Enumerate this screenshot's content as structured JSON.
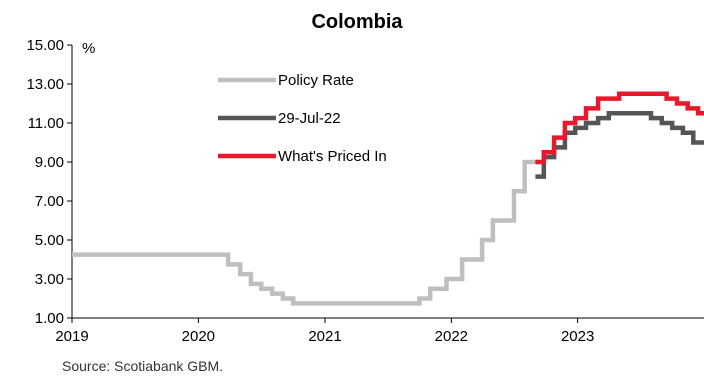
{
  "chart_data": {
    "type": "line",
    "title": "Colombia",
    "ylabel": "%",
    "ylim": [
      1.0,
      15.0
    ],
    "xlim": [
      "2019-01-01",
      "2024-01-01"
    ],
    "y_ticks": [
      "1.00",
      "3.00",
      "5.00",
      "7.00",
      "9.00",
      "11.00",
      "13.00",
      "15.00"
    ],
    "x_ticks": [
      "2019",
      "2020",
      "2021",
      "2022",
      "2023"
    ],
    "legend_placement": "upper-left inside plot",
    "grid": false,
    "series": [
      {
        "name": "Policy Rate",
        "color": "#bfbfbf",
        "step": true,
        "points": [
          [
            "2019-01-01",
            4.25
          ],
          [
            "2020-03-27",
            3.75
          ],
          [
            "2020-05-01",
            3.25
          ],
          [
            "2020-06-01",
            2.75
          ],
          [
            "2020-07-01",
            2.5
          ],
          [
            "2020-08-01",
            2.25
          ],
          [
            "2020-09-01",
            2.0
          ],
          [
            "2020-10-01",
            1.75
          ],
          [
            "2021-10-01",
            2.0
          ],
          [
            "2021-11-01",
            2.5
          ],
          [
            "2021-12-18",
            3.0
          ],
          [
            "2022-02-01",
            4.0
          ],
          [
            "2022-03-31",
            5.0
          ],
          [
            "2022-05-01",
            6.0
          ],
          [
            "2022-07-01",
            7.5
          ],
          [
            "2022-08-01",
            9.0
          ],
          [
            "2022-09-10",
            9.0
          ]
        ]
      },
      {
        "name": "29-Jul-22",
        "color": "#555555",
        "step": true,
        "points": [
          [
            "2022-09-01",
            8.25
          ],
          [
            "2022-09-25",
            9.25
          ],
          [
            "2022-10-25",
            9.75
          ],
          [
            "2022-11-25",
            10.5
          ],
          [
            "2022-12-25",
            10.75
          ],
          [
            "2023-01-25",
            11.0
          ],
          [
            "2023-03-01",
            11.25
          ],
          [
            "2023-04-01",
            11.5
          ],
          [
            "2023-08-01",
            11.25
          ],
          [
            "2023-09-01",
            11.0
          ],
          [
            "2023-10-01",
            10.75
          ],
          [
            "2023-11-01",
            10.5
          ],
          [
            "2023-12-01",
            10.0
          ],
          [
            "2024-01-01",
            10.0
          ]
        ]
      },
      {
        "name": "What's Priced In",
        "color": "#e8192c",
        "step": true,
        "points": [
          [
            "2022-09-01",
            9.0
          ],
          [
            "2022-09-25",
            9.5
          ],
          [
            "2022-10-25",
            10.25
          ],
          [
            "2022-11-25",
            11.0
          ],
          [
            "2022-12-25",
            11.25
          ],
          [
            "2023-01-25",
            11.75
          ],
          [
            "2023-03-01",
            12.25
          ],
          [
            "2023-05-01",
            12.5
          ],
          [
            "2023-09-15",
            12.25
          ],
          [
            "2023-10-15",
            12.0
          ],
          [
            "2023-11-15",
            11.75
          ],
          [
            "2023-12-15",
            11.5
          ],
          [
            "2024-01-01",
            11.5
          ]
        ]
      }
    ]
  },
  "source": "Source: Scotiabank GBM."
}
